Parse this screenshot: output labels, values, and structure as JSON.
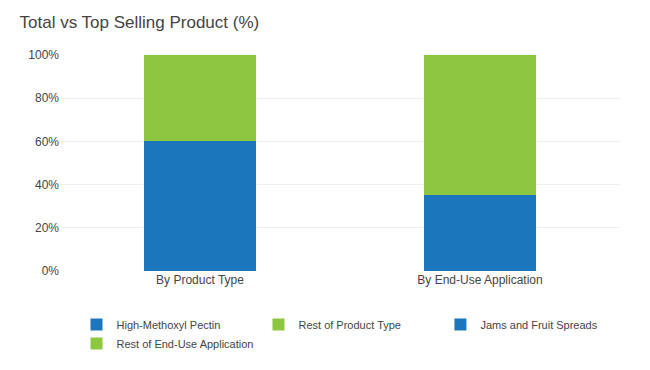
{
  "chart_data": {
    "type": "bar",
    "title": "Total vs Top Selling Product (%)",
    "categories": [
      "By Product Type",
      "By End-Use Application"
    ],
    "stacked": true,
    "series": [
      {
        "name": "High-Methoxyl Pectin",
        "color": "#1C76BC",
        "values": [
          60,
          null
        ]
      },
      {
        "name": "Rest of Product Type",
        "color": "#8DC63F",
        "values": [
          40,
          null
        ]
      },
      {
        "name": "Jams and Fruit Spreads",
        "color": "#1C76BC",
        "values": [
          null,
          35
        ]
      },
      {
        "name": "Rest of End-Use Application",
        "color": "#8DC63F",
        "values": [
          null,
          65
        ]
      }
    ],
    "ylim": [
      0,
      100
    ],
    "yticks": [
      {
        "value": 0,
        "label": "0%"
      },
      {
        "value": 20,
        "label": "20%"
      },
      {
        "value": 40,
        "label": "40%"
      },
      {
        "value": 60,
        "label": "60%"
      },
      {
        "value": 80,
        "label": "80%"
      },
      {
        "value": 100,
        "label": "100%"
      }
    ],
    "grid": true,
    "legend": "bottom"
  }
}
